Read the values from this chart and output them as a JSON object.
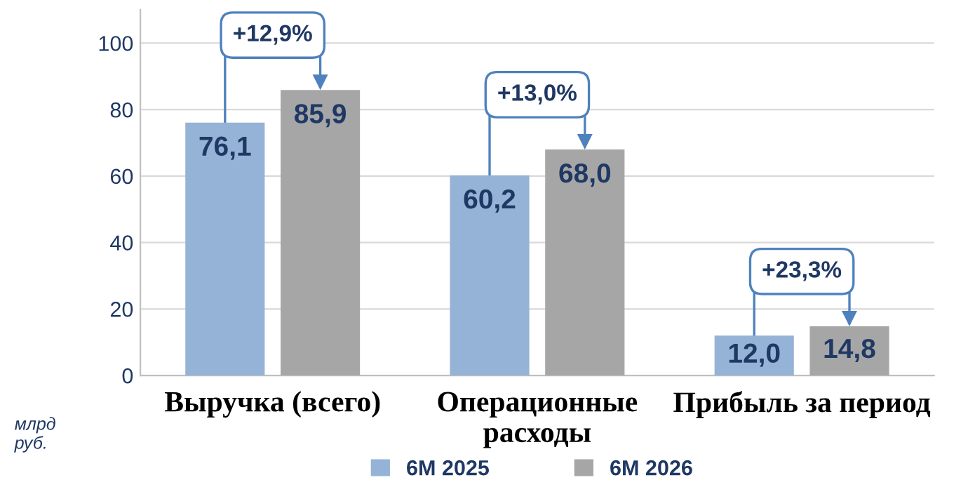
{
  "chart_data": {
    "type": "bar",
    "categories": [
      "Выручка (всего)",
      "Операционные\nрасходы",
      "Прибыль за период"
    ],
    "series": [
      {
        "name": "6М 2025",
        "color": "#95b3d7",
        "values": [
          76.1,
          60.2,
          12.0
        ],
        "value_labels": [
          "76,1",
          "60,2",
          "12,0"
        ]
      },
      {
        "name": "6М 2026",
        "color": "#a6a6a6",
        "values": [
          85.9,
          68.0,
          14.8
        ],
        "value_labels": [
          "85,9",
          "68,0",
          "14,8"
        ]
      }
    ],
    "ylabel": "млрд\nруб.",
    "ylim": [
      0,
      110
    ],
    "yticks": [
      0,
      20,
      40,
      60,
      80,
      100
    ],
    "grid": "y",
    "legend": "bottom",
    "annotations": [
      "+12,9%",
      "+13,0%",
      "+23,3%"
    ]
  }
}
